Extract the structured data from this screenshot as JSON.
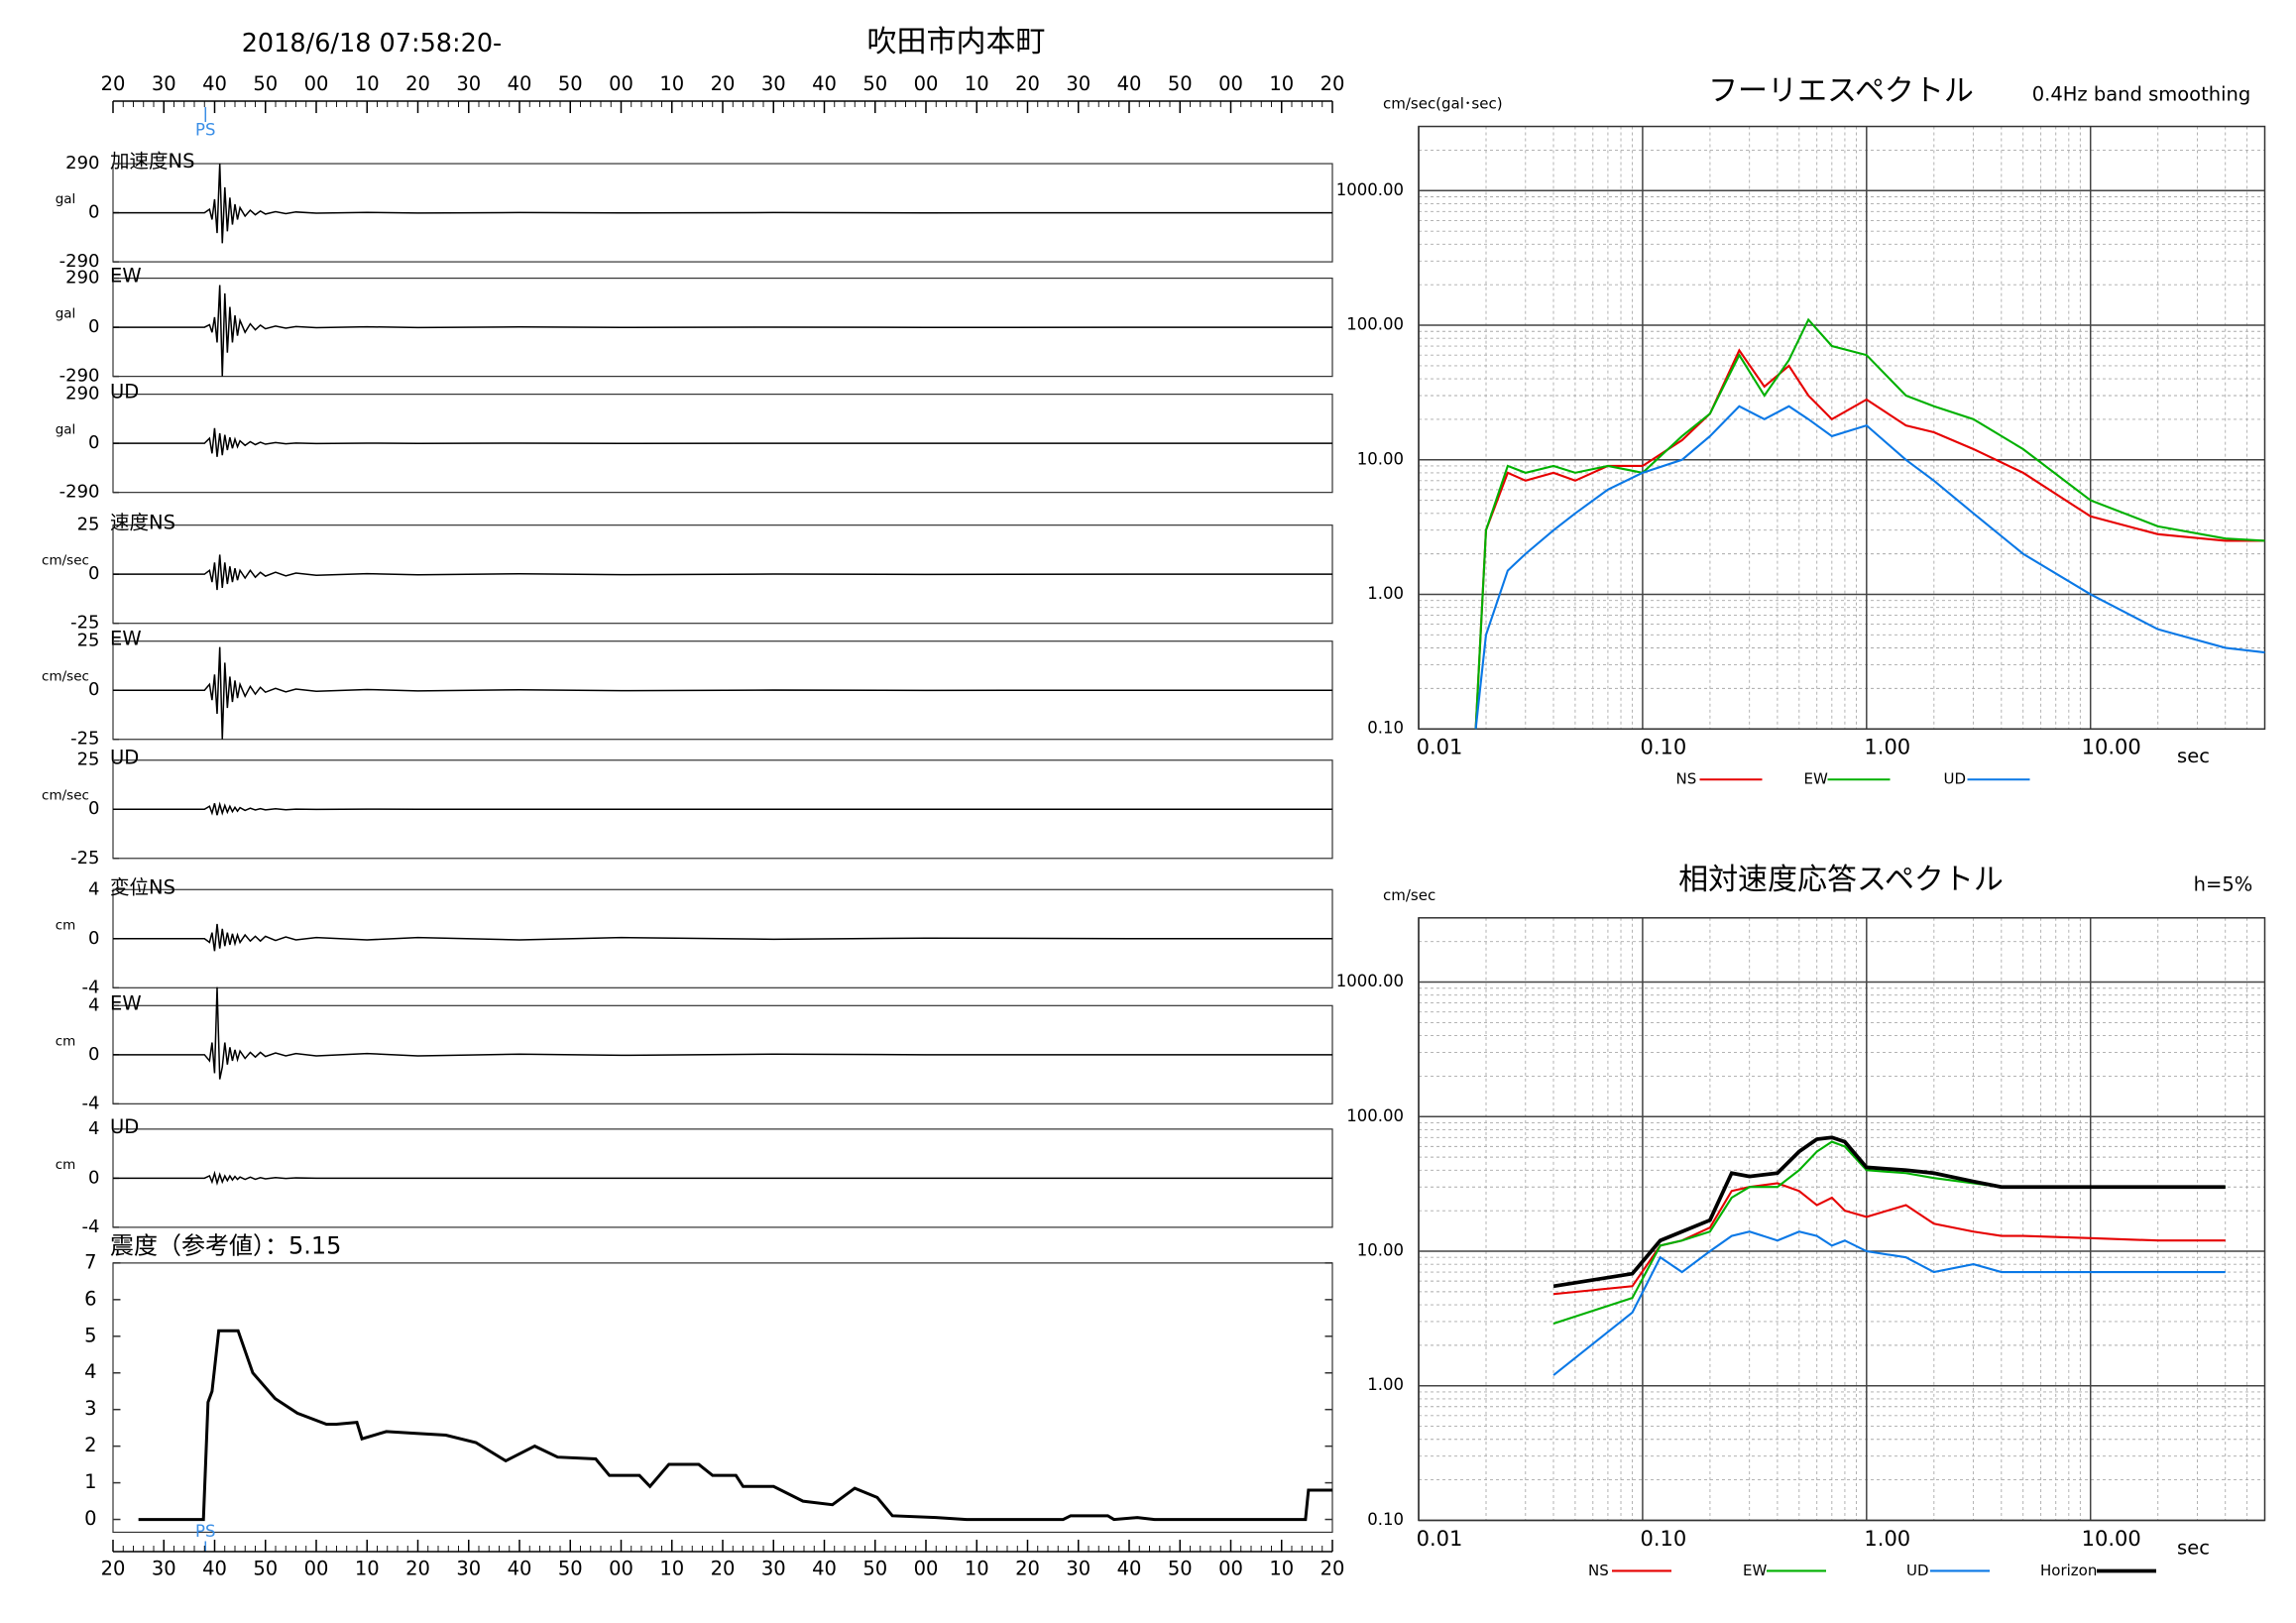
{
  "header": {
    "datetime": "2018/6/18 07:58:20-",
    "station": "吹田市内本町"
  },
  "chart_data": [
    {
      "type": "waveform",
      "xlim": [
        0,
        240
      ],
      "xticks": [
        {
          "value": 0,
          "label": "20"
        },
        {
          "value": 10,
          "label": "30"
        },
        {
          "value": 20,
          "label": "40"
        },
        {
          "value": 30,
          "label": "50"
        },
        {
          "value": 40,
          "label": "00"
        },
        {
          "value": 50,
          "label": "10"
        },
        {
          "value": 60,
          "label": "20"
        },
        {
          "value": 70,
          "label": "30"
        },
        {
          "value": 80,
          "label": "40"
        },
        {
          "value": 90,
          "label": "50"
        },
        {
          "value": 100,
          "label": "00"
        },
        {
          "value": 110,
          "label": "10"
        },
        {
          "value": 120,
          "label": "20"
        },
        {
          "value": 130,
          "label": "30"
        },
        {
          "value": 140,
          "label": "40"
        },
        {
          "value": 150,
          "label": "50"
        },
        {
          "value": 160,
          "label": "00"
        },
        {
          "value": 170,
          "label": "10"
        },
        {
          "value": 180,
          "label": "20"
        },
        {
          "value": 190,
          "label": "30"
        },
        {
          "value": 200,
          "label": "40"
        },
        {
          "value": 210,
          "label": "50"
        },
        {
          "value": 220,
          "label": "00"
        },
        {
          "value": 230,
          "label": "10"
        },
        {
          "value": 240,
          "label": "20"
        }
      ],
      "ps_label": "PS",
      "ps_x": 18.2,
      "x": [
        0,
        18,
        19,
        19.5,
        20,
        20.5,
        21,
        21.5,
        22,
        22.5,
        23,
        23.5,
        24,
        24.5,
        25,
        26,
        27,
        28,
        29,
        30,
        32,
        34,
        36,
        40,
        50,
        60,
        80,
        100,
        130,
        160,
        200,
        240
      ],
      "panels": [
        {
          "name": "加速度NS",
          "unit": "gal",
          "ylim": [
            -290,
            290
          ],
          "yticks": [
            290,
            0,
            -290
          ],
          "values": [
            0,
            0,
            20,
            -40,
            80,
            -120,
            290,
            -180,
            150,
            -110,
            90,
            -70,
            50,
            -40,
            30,
            -20,
            15,
            -12,
            10,
            -8,
            6,
            -5,
            4,
            -3,
            2,
            -2,
            1,
            -1,
            1,
            -1,
            0,
            0
          ]
        },
        {
          "name": "EW",
          "unit": "gal",
          "ylim": [
            -290,
            290
          ],
          "yticks": [
            290,
            0,
            -290
          ],
          "values": [
            0,
            0,
            15,
            -30,
            60,
            -90,
            250,
            -290,
            200,
            -150,
            120,
            -90,
            70,
            -50,
            40,
            -30,
            20,
            -15,
            12,
            -9,
            7,
            -5,
            4,
            -3,
            3,
            -2,
            2,
            -1,
            1,
            -1,
            0,
            0
          ]
        },
        {
          "name": "UD",
          "unit": "gal",
          "ylim": [
            -290,
            290
          ],
          "yticks": [
            290,
            0,
            -290
          ],
          "values": [
            0,
            0,
            30,
            -60,
            90,
            -80,
            60,
            -70,
            50,
            -40,
            35,
            -30,
            25,
            -20,
            15,
            -12,
            10,
            -8,
            6,
            -5,
            4,
            -3,
            2,
            -2,
            1,
            -1,
            1,
            -1,
            0,
            0,
            0,
            0
          ]
        },
        {
          "name": "速度NS",
          "unit": "cm/sec",
          "ylim": [
            -25,
            25
          ],
          "yticks": [
            25,
            0,
            -25
          ],
          "values": [
            0,
            0,
            2,
            -4,
            6,
            -8,
            10,
            -7,
            6,
            -5,
            4,
            -4,
            3,
            -3,
            2,
            -2,
            2,
            -1.5,
            1,
            -1,
            1,
            -0.8,
            0.6,
            -0.5,
            0.3,
            -0.3,
            0.2,
            -0.2,
            0.1,
            -0.1,
            0,
            0
          ]
        },
        {
          "name": "EW",
          "unit": "cm/sec",
          "ylim": [
            -25,
            25
          ],
          "yticks": [
            25,
            0,
            -25
          ],
          "values": [
            0,
            0,
            3,
            -5,
            8,
            -12,
            22,
            -25,
            14,
            -9,
            7,
            -6,
            5,
            -4,
            3,
            -3,
            2,
            -2,
            1.5,
            -1,
            1,
            -0.8,
            0.6,
            -0.5,
            0.4,
            -0.3,
            0.2,
            -0.2,
            0.1,
            -0.1,
            0,
            0
          ]
        },
        {
          "name": "UD",
          "unit": "cm/sec",
          "ylim": [
            -25,
            25
          ],
          "yticks": [
            25,
            0,
            -25
          ],
          "values": [
            0,
            0,
            1.5,
            -2,
            3,
            -3,
            2.5,
            -2,
            2,
            -1.5,
            1.5,
            -1.2,
            1,
            -1,
            0.8,
            -0.6,
            0.5,
            -0.4,
            0.3,
            -0.3,
            0.2,
            -0.2,
            0.1,
            -0.1,
            0.1,
            0,
            0,
            0,
            0,
            0,
            0,
            0
          ]
        },
        {
          "name": "変位NS",
          "unit": "cm",
          "ylim": [
            -4,
            4
          ],
          "yticks": [
            4,
            0,
            -4
          ],
          "values": [
            0,
            0,
            -0.3,
            0.5,
            -1,
            1.2,
            -0.8,
            0.8,
            -0.6,
            0.5,
            -0.5,
            0.4,
            -0.4,
            0.3,
            -0.3,
            0.3,
            -0.2,
            0.2,
            -0.2,
            0.2,
            -0.15,
            0.15,
            -0.1,
            0.1,
            -0.1,
            0.1,
            -0.1,
            0.1,
            -0.05,
            0.05,
            0,
            0
          ]
        },
        {
          "name": "EW",
          "unit": "cm",
          "ylim": [
            -4,
            4
          ],
          "yticks": [
            4,
            0,
            -4
          ],
          "values": [
            0,
            0,
            -0.5,
            1,
            -1.5,
            5.5,
            -2,
            -1,
            1,
            -0.8,
            0.6,
            -0.5,
            0.4,
            -0.4,
            0.3,
            -0.3,
            0.2,
            -0.2,
            0.2,
            -0.15,
            0.15,
            -0.1,
            0.1,
            -0.1,
            0.1,
            -0.1,
            0.05,
            -0.05,
            0.05,
            0,
            0,
            0
          ]
        },
        {
          "name": "UD",
          "unit": "cm",
          "ylim": [
            -4,
            4
          ],
          "yticks": [
            4,
            0,
            -4
          ],
          "values": [
            0,
            0,
            0.2,
            -0.3,
            0.4,
            -0.4,
            0.3,
            -0.3,
            0.2,
            -0.2,
            0.2,
            -0.15,
            0.15,
            -0.1,
            0.1,
            -0.1,
            0.08,
            -0.08,
            0.05,
            -0.05,
            0.05,
            -0.03,
            0.03,
            0,
            0,
            0,
            0,
            0,
            0,
            0,
            0,
            0
          ]
        }
      ]
    },
    {
      "type": "line",
      "title": "震度（参考値）：5.15",
      "xlim": [
        0,
        240
      ],
      "xticks": [
        {
          "value": 0,
          "label": "20"
        },
        {
          "value": 10,
          "label": "30"
        },
        {
          "value": 20,
          "label": "40"
        },
        {
          "value": 30,
          "label": "50"
        },
        {
          "value": 40,
          "label": "00"
        },
        {
          "value": 50,
          "label": "10"
        },
        {
          "value": 60,
          "label": "20"
        },
        {
          "value": 70,
          "label": "30"
        },
        {
          "value": 80,
          "label": "40"
        },
        {
          "value": 90,
          "label": "50"
        },
        {
          "value": 100,
          "label": "00"
        },
        {
          "value": 110,
          "label": "10"
        },
        {
          "value": 120,
          "label": "20"
        },
        {
          "value": 130,
          "label": "30"
        },
        {
          "value": 140,
          "label": "40"
        },
        {
          "value": 150,
          "label": "50"
        },
        {
          "value": 160,
          "label": "00"
        },
        {
          "value": 170,
          "label": "10"
        },
        {
          "value": 180,
          "label": "20"
        },
        {
          "value": 190,
          "label": "30"
        },
        {
          "value": 200,
          "label": "40"
        },
        {
          "value": 210,
          "label": "50"
        },
        {
          "value": 220,
          "label": "00"
        },
        {
          "value": 230,
          "label": "10"
        },
        {
          "value": 240,
          "label": "20"
        }
      ],
      "ylim": [
        -0.35,
        7
      ],
      "yticks": [
        0,
        1,
        2,
        3,
        4,
        5,
        6,
        7
      ],
      "ps_label": "PS",
      "ps_x": 18.2,
      "color": "#000000",
      "x": [
        5,
        17.8,
        18.7,
        19.5,
        20.8,
        24.6,
        27.5,
        31.9,
        36.3,
        42,
        44,
        48,
        49,
        53.8,
        59.7,
        65.5,
        71.4,
        77.3,
        83,
        87.5,
        95,
        97.7,
        103.6,
        105.7,
        109.4,
        115.3,
        118,
        122.6,
        124,
        130,
        135.8,
        141.6,
        146,
        150.4,
        153.4,
        162,
        168,
        187,
        188.5,
        195.8,
        197,
        201.6,
        205,
        234.7,
        235.3,
        240
      ],
      "values": [
        0,
        0,
        3.2,
        3.5,
        5.15,
        5.15,
        4.0,
        3.3,
        2.9,
        2.6,
        2.6,
        2.65,
        2.2,
        2.4,
        2.35,
        2.3,
        2.1,
        1.6,
        2.0,
        1.7,
        1.65,
        1.2,
        1.2,
        0.9,
        1.5,
        1.5,
        1.2,
        1.2,
        0.9,
        0.9,
        0.5,
        0.4,
        0.85,
        0.6,
        0.1,
        0.05,
        0,
        0,
        0.1,
        0.1,
        0,
        0.05,
        0,
        0,
        0.8,
        0.8
      ]
    },
    {
      "type": "log-line",
      "title": "フーリエスペクトル",
      "subtitle": "0.4Hz band smoothing",
      "y_unit": "cm/sec(gal･sec)",
      "xlabel": "sec",
      "log_x": true,
      "log_y": true,
      "minor_grid": true,
      "xlim": [
        0.01,
        60
      ],
      "ylim": [
        0.1,
        3000
      ],
      "xticks": [
        0.01,
        {
          "value": 0.1,
          "label": "0.10"
        },
        {
          "value": 1,
          "label": "1.00"
        },
        {
          "value": 10,
          "label": "10.00"
        }
      ],
      "yticks": [
        {
          "value": 0.1,
          "label": "0.10"
        },
        {
          "value": 1,
          "label": "1.00"
        },
        {
          "value": 10,
          "label": "10.00"
        },
        {
          "value": 100,
          "label": "100.00"
        },
        {
          "value": 1000,
          "label": "1000.00"
        }
      ],
      "x": [
        0.018,
        0.02,
        0.025,
        0.03,
        0.04,
        0.05,
        0.07,
        0.1,
        0.15,
        0.2,
        0.27,
        0.35,
        0.45,
        0.55,
        0.7,
        1,
        1.5,
        2,
        3,
        5,
        10,
        20,
        40,
        60
      ],
      "series": [
        {
          "name": "NS",
          "color": "#e60000",
          "values": [
            0.1,
            3,
            8,
            7,
            8,
            7,
            9,
            9,
            14,
            22,
            65,
            35,
            50,
            30,
            20,
            28,
            18,
            16,
            12,
            8,
            3.8,
            2.8,
            2.5,
            2.5
          ]
        },
        {
          "name": "EW",
          "color": "#00b000",
          "values": [
            0.1,
            3,
            9,
            8,
            9,
            8,
            9,
            8,
            15,
            22,
            60,
            30,
            55,
            110,
            70,
            60,
            30,
            25,
            20,
            12,
            5,
            3.2,
            2.6,
            2.5
          ]
        },
        {
          "name": "UD",
          "color": "#0a78e6",
          "values": [
            0.1,
            0.5,
            1.5,
            2,
            3,
            4,
            6,
            8,
            10,
            15,
            25,
            20,
            25,
            20,
            15,
            18,
            10,
            7,
            4,
            2,
            1,
            0.55,
            0.4,
            0.37
          ]
        }
      ]
    },
    {
      "type": "log-line",
      "title": "相対速度応答スペクトル",
      "subtitle": "h=5%",
      "y_unit": "cm/sec",
      "xlabel": "sec",
      "log_x": true,
      "log_y": true,
      "minor_grid": true,
      "xlim": [
        0.01,
        60
      ],
      "ylim": [
        0.1,
        3000
      ],
      "xticks": [
        0.01,
        {
          "value": 0.1,
          "label": "0.10"
        },
        {
          "value": 1,
          "label": "1.00"
        },
        {
          "value": 10,
          "label": "10.00"
        }
      ],
      "yticks": [
        {
          "value": 0.1,
          "label": "0.10"
        },
        {
          "value": 1,
          "label": "1.00"
        },
        {
          "value": 10,
          "label": "10.00"
        },
        {
          "value": 100,
          "label": "100.00"
        },
        {
          "value": 1000,
          "label": "1000.00"
        }
      ],
      "x": [
        0.04,
        0.09,
        0.12,
        0.15,
        0.2,
        0.25,
        0.3,
        0.4,
        0.5,
        0.6,
        0.7,
        0.8,
        1,
        1.5,
        2,
        3,
        4,
        5,
        10,
        20,
        40
      ],
      "series": [
        {
          "name": "NS",
          "color": "#e60000",
          "values": [
            4.8,
            5.5,
            11,
            12,
            15,
            28,
            30,
            32,
            28,
            22,
            25,
            20,
            18,
            22,
            16,
            14,
            13,
            13,
            12.5,
            12,
            12
          ]
        },
        {
          "name": "EW",
          "color": "#00b000",
          "values": [
            2.9,
            4.5,
            11,
            12,
            14,
            25,
            30,
            30,
            40,
            55,
            65,
            60,
            40,
            38,
            35,
            32,
            30,
            30,
            30,
            30,
            30
          ]
        },
        {
          "name": "UD",
          "color": "#0a78e6",
          "values": [
            1.2,
            3.5,
            9,
            7,
            10,
            13,
            14,
            12,
            14,
            13,
            11,
            12,
            10,
            9,
            7,
            8,
            7,
            7,
            7,
            7,
            7
          ]
        },
        {
          "name": "Horizon",
          "color": "#000000",
          "values": [
            5.5,
            6.8,
            12,
            14,
            17,
            38,
            36,
            38,
            55,
            68,
            70,
            65,
            42,
            40,
            38,
            33,
            30,
            30,
            30,
            30,
            30
          ]
        }
      ]
    }
  ]
}
